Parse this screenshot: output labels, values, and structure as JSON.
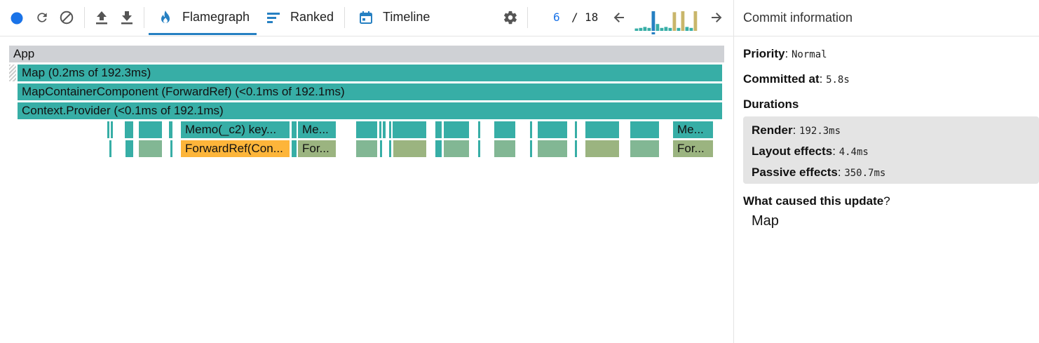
{
  "toolbar": {
    "tabs": [
      {
        "label": "Flamegraph",
        "icon": "fire-icon",
        "selected": true
      },
      {
        "label": "Ranked",
        "icon": "ranked-list-icon",
        "selected": false
      },
      {
        "label": "Timeline",
        "icon": "calendar-icon",
        "selected": false
      }
    ],
    "commit_current": "6",
    "commit_separator": "/",
    "commit_total": "18",
    "accent": "#2680c2"
  },
  "commit_chart": {
    "bars": [
      {
        "level": 0.12,
        "color": "#37aea6"
      },
      {
        "level": 0.15,
        "color": "#37aea6"
      },
      {
        "level": 0.2,
        "color": "#37aea6"
      },
      {
        "level": 0.15,
        "color": "#37aea6"
      },
      {
        "level": 1.0,
        "color": "#2680c2"
      },
      {
        "level": 0.35,
        "color": "#37aea6"
      },
      {
        "level": 0.15,
        "color": "#37aea6"
      },
      {
        "level": 0.2,
        "color": "#37aea6"
      },
      {
        "level": 0.15,
        "color": "#37aea6"
      },
      {
        "level": 0.95,
        "color": "#c9b66b"
      },
      {
        "level": 0.15,
        "color": "#37aea6"
      },
      {
        "level": 1.0,
        "color": "#c9b66b"
      },
      {
        "level": 0.2,
        "color": "#37aea6"
      },
      {
        "level": 0.15,
        "color": "#37aea6"
      },
      {
        "level": 1.0,
        "color": "#c9b66b"
      }
    ]
  },
  "flamegraph": {
    "root": "App",
    "rows": [
      "Map (0.2ms of 192.3ms)",
      "MapContainerComponent (ForwardRef) (<0.1ms of 192.1ms)",
      "Context.Provider (<0.1ms of 192.1ms)"
    ],
    "memo_labels": [
      "Memo(_c2) key...",
      "Me...",
      "Me..."
    ],
    "forward_labels": [
      "ForwardRef(Con...",
      "For...",
      "For..."
    ],
    "colors": {
      "teal": "#37aea6",
      "sage": "#82b794",
      "olive": "#9bb480",
      "orange": "#fdb53a",
      "grey": "#cfd1d5"
    }
  },
  "sidebar": {
    "title": "Commit information",
    "priority_label": "Priority",
    "priority_value": "Normal",
    "committed_label": "Committed at",
    "committed_value": "5.8s",
    "durations_label": "Durations",
    "durations": [
      {
        "label": "Render",
        "value": "192.3ms"
      },
      {
        "label": "Layout effects",
        "value": "4.4ms"
      },
      {
        "label": "Passive effects",
        "value": "350.7ms"
      }
    ],
    "cause_label": "What caused this update",
    "cause_q": "?",
    "cause_value": "Map"
  }
}
